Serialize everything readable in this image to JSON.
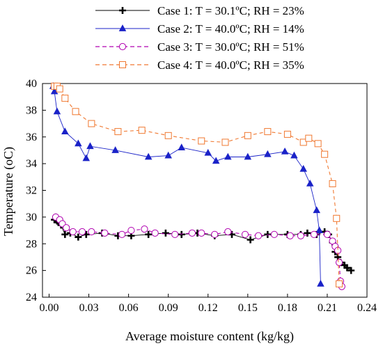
{
  "chart_data": {
    "type": "line",
    "title": "",
    "xlabel": "Average moisture content (kg/kg)",
    "ylabel": "Temperature (oC)",
    "xlim": [
      -0.005,
      0.24
    ],
    "ylim": [
      24,
      40
    ],
    "x_ticks": [
      "0.00",
      "0.03",
      "0.06",
      "0.09",
      "0.12",
      "0.15",
      "0.18",
      "0.21",
      "0.24"
    ],
    "y_ticks": [
      "24",
      "26",
      "28",
      "30",
      "32",
      "34",
      "36",
      "38",
      "40"
    ],
    "grid": false,
    "legend_position": "top",
    "series": [
      {
        "name": "Case 1: T = 30.1ºC; RH = 23%",
        "color": "#000000",
        "line_style": "solid",
        "marker": "plus",
        "points": [
          [
            0.004,
            29.8
          ],
          [
            0.005,
            30.0
          ],
          [
            0.006,
            29.7
          ],
          [
            0.007,
            29.6
          ],
          [
            0.009,
            29.4
          ],
          [
            0.012,
            28.7
          ],
          [
            0.016,
            28.8
          ],
          [
            0.022,
            28.5
          ],
          [
            0.028,
            28.7
          ],
          [
            0.04,
            28.8
          ],
          [
            0.052,
            28.6
          ],
          [
            0.062,
            28.6
          ],
          [
            0.075,
            28.7
          ],
          [
            0.088,
            28.8
          ],
          [
            0.1,
            28.7
          ],
          [
            0.112,
            28.8
          ],
          [
            0.125,
            28.6
          ],
          [
            0.138,
            28.7
          ],
          [
            0.152,
            28.3
          ],
          [
            0.165,
            28.7
          ],
          [
            0.18,
            28.7
          ],
          [
            0.19,
            28.7
          ],
          [
            0.195,
            28.8
          ],
          [
            0.202,
            28.7
          ],
          [
            0.208,
            28.9
          ],
          [
            0.211,
            28.7
          ],
          [
            0.214,
            28.1
          ],
          [
            0.216,
            27.4
          ],
          [
            0.218,
            27.0
          ],
          [
            0.22,
            26.6
          ],
          [
            0.223,
            26.4
          ],
          [
            0.225,
            26.2
          ],
          [
            0.228,
            26.0
          ]
        ]
      },
      {
        "name": "Case 2: T = 40.0ºC; RH = 14%",
        "color": "#1a22c8",
        "line_style": "solid",
        "marker": "triangle",
        "points": [
          [
            0.003,
            39.8
          ],
          [
            0.004,
            39.4
          ],
          [
            0.006,
            37.9
          ],
          [
            0.012,
            36.4
          ],
          [
            0.022,
            35.5
          ],
          [
            0.028,
            34.4
          ],
          [
            0.031,
            35.3
          ],
          [
            0.05,
            35.0
          ],
          [
            0.075,
            34.5
          ],
          [
            0.09,
            34.6
          ],
          [
            0.1,
            35.2
          ],
          [
            0.12,
            34.8
          ],
          [
            0.126,
            34.2
          ],
          [
            0.135,
            34.5
          ],
          [
            0.15,
            34.5
          ],
          [
            0.165,
            34.7
          ],
          [
            0.178,
            34.9
          ],
          [
            0.185,
            34.6
          ],
          [
            0.192,
            33.6
          ],
          [
            0.197,
            32.5
          ],
          [
            0.202,
            30.5
          ],
          [
            0.204,
            29.0
          ],
          [
            0.205,
            25.0
          ]
        ]
      },
      {
        "name": "Case 3: T = 30.0ºC; RH = 51%",
        "color": "#b000b0",
        "line_style": "dashed",
        "marker": "circle",
        "points": [
          [
            0.005,
            30.0
          ],
          [
            0.008,
            29.8
          ],
          [
            0.01,
            29.5
          ],
          [
            0.013,
            29.2
          ],
          [
            0.018,
            28.9
          ],
          [
            0.025,
            28.9
          ],
          [
            0.032,
            28.9
          ],
          [
            0.042,
            28.8
          ],
          [
            0.055,
            28.7
          ],
          [
            0.062,
            29.0
          ],
          [
            0.072,
            29.1
          ],
          [
            0.08,
            28.8
          ],
          [
            0.095,
            28.7
          ],
          [
            0.108,
            28.8
          ],
          [
            0.115,
            28.8
          ],
          [
            0.125,
            28.7
          ],
          [
            0.135,
            28.9
          ],
          [
            0.148,
            28.7
          ],
          [
            0.158,
            28.6
          ],
          [
            0.17,
            28.7
          ],
          [
            0.182,
            28.6
          ],
          [
            0.19,
            28.6
          ],
          [
            0.2,
            28.7
          ],
          [
            0.21,
            28.7
          ],
          [
            0.214,
            28.2
          ],
          [
            0.216,
            27.8
          ],
          [
            0.218,
            27.5
          ],
          [
            0.219,
            26.6
          ],
          [
            0.22,
            25.2
          ],
          [
            0.221,
            24.8
          ]
        ]
      },
      {
        "name": "Case 4: T = 40.0ºC; RH = 35%",
        "color": "#f07830",
        "line_style": "dashed",
        "marker": "square",
        "points": [
          [
            0.004,
            39.8
          ],
          [
            0.006,
            39.8
          ],
          [
            0.008,
            39.6
          ],
          [
            0.012,
            38.9
          ],
          [
            0.02,
            37.9
          ],
          [
            0.032,
            37.0
          ],
          [
            0.052,
            36.4
          ],
          [
            0.07,
            36.5
          ],
          [
            0.09,
            36.1
          ],
          [
            0.115,
            35.7
          ],
          [
            0.133,
            35.6
          ],
          [
            0.15,
            36.1
          ],
          [
            0.165,
            36.4
          ],
          [
            0.18,
            36.2
          ],
          [
            0.192,
            35.6
          ],
          [
            0.196,
            35.9
          ],
          [
            0.203,
            35.5
          ],
          [
            0.208,
            34.7
          ],
          [
            0.214,
            32.5
          ],
          [
            0.217,
            29.9
          ],
          [
            0.219,
            25.0
          ]
        ]
      }
    ]
  }
}
